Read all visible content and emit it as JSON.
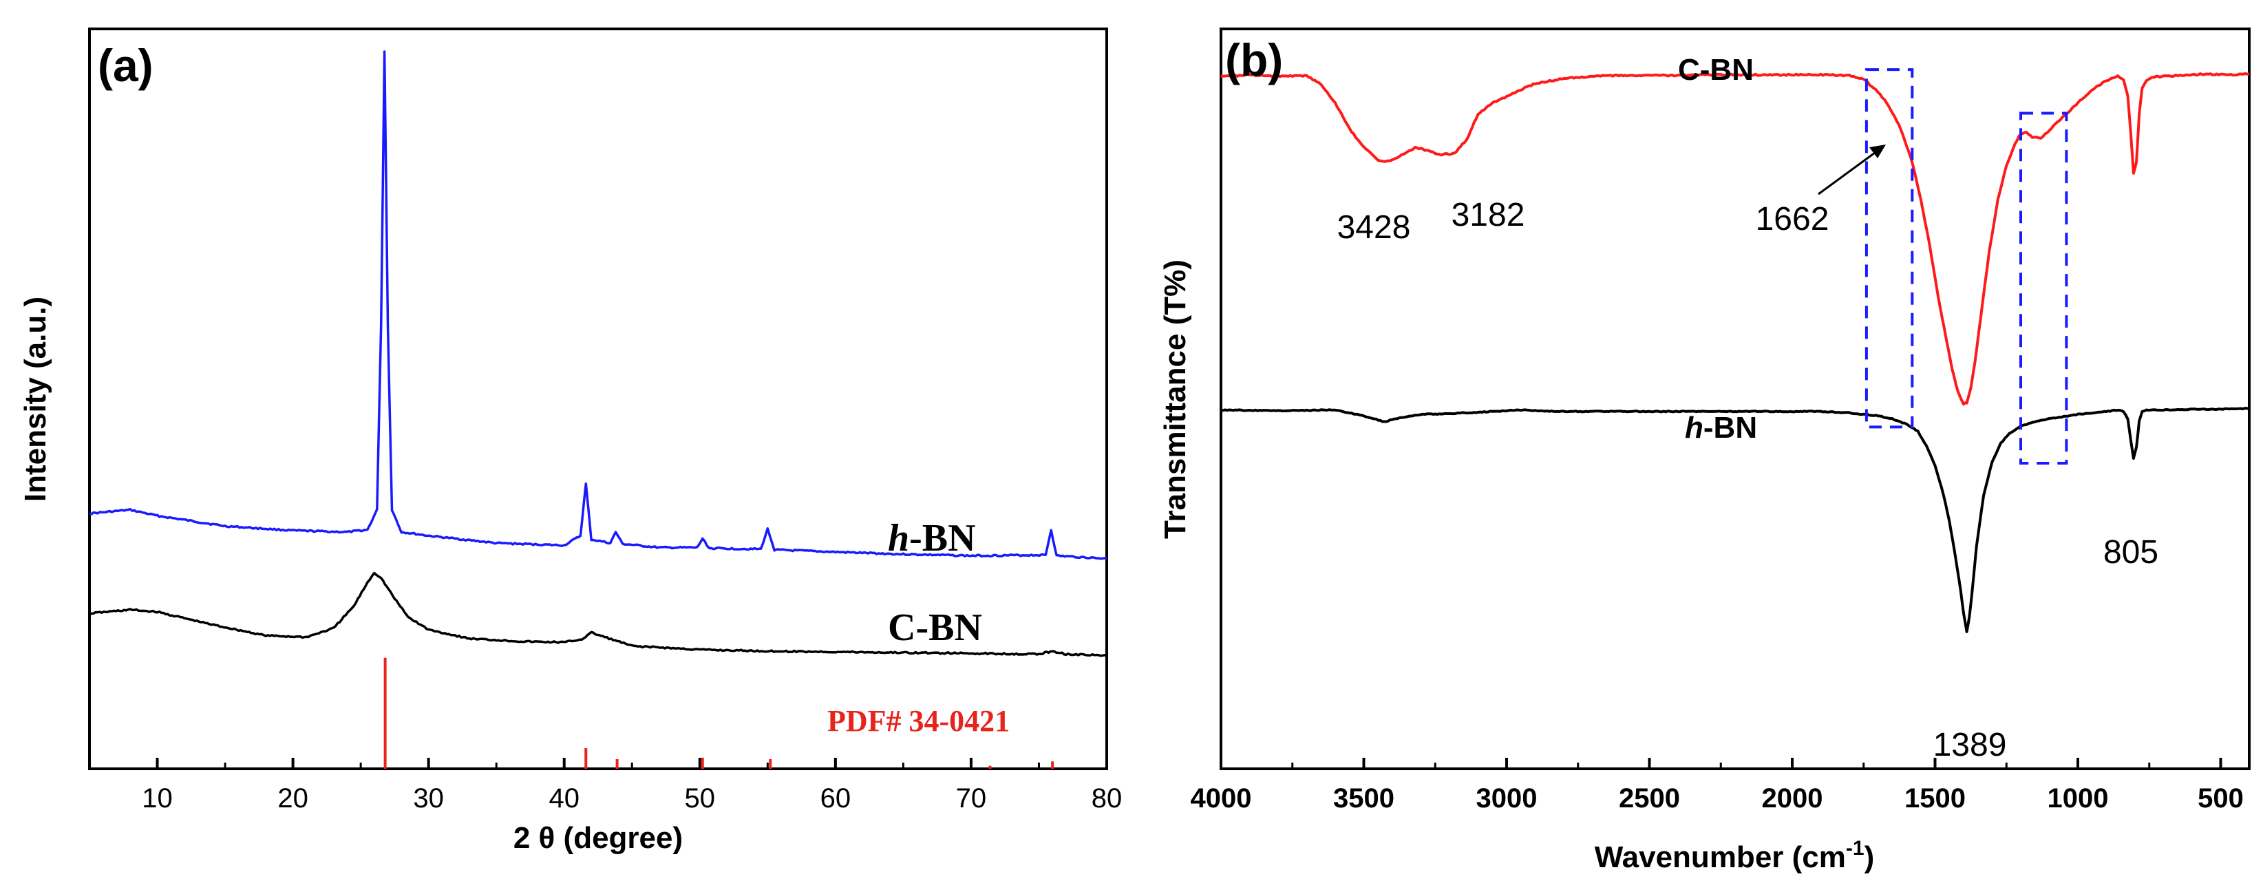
{
  "figure": {
    "panel_a_label": "(a)",
    "panel_b_label": "(b)"
  },
  "chart_data": [
    {
      "type": "line",
      "panel": "(a)",
      "title": "",
      "xlabel": "2 θ (degree)",
      "ylabel": "Intensity (a.u.)",
      "xlim": [
        5,
        80
      ],
      "ylim": [
        0,
        100
      ],
      "xticks": [
        10,
        20,
        30,
        40,
        50,
        60,
        70,
        80
      ],
      "y_tick_labels_shown": false,
      "series": [
        {
          "name": "h-BN",
          "label_prefix": "h",
          "label_suffix": "-BN",
          "color": "#1a1aff",
          "x": [
            5,
            8,
            10,
            15,
            20,
            24,
            25.5,
            26.2,
            26.5,
            26.75,
            27.0,
            27.3,
            28,
            30,
            35,
            40,
            41.2,
            41.6,
            42.0,
            43.4,
            43.8,
            44.3,
            47,
            49.8,
            50.2,
            50.7,
            54.5,
            55.0,
            55.5,
            60,
            65,
            70,
            75.5,
            75.9,
            76.3,
            80
          ],
          "y": [
            34.5,
            35.0,
            34.2,
            32.8,
            32.2,
            32.0,
            32.3,
            35.0,
            60.0,
            97.0,
            60.0,
            35.0,
            32.0,
            31.5,
            30.5,
            30.2,
            31.5,
            38.5,
            31.0,
            30.5,
            32.0,
            30.4,
            29.9,
            29.9,
            31.1,
            29.8,
            29.7,
            32.4,
            29.6,
            29.3,
            29.0,
            28.8,
            28.9,
            32.3,
            28.8,
            28.4
          ]
        },
        {
          "name": "C-BN",
          "label": "C-BN",
          "color": "#000000",
          "x": [
            5,
            8,
            10,
            14,
            18,
            21,
            23,
            24.5,
            25.5,
            26.0,
            26.5,
            27.5,
            28.5,
            30,
            33,
            37,
            40,
            41.3,
            42.0,
            43.0,
            45,
            50,
            55,
            60,
            65,
            70,
            75,
            76,
            77,
            80
          ],
          "y": [
            21.0,
            21.5,
            21.2,
            19.5,
            18.0,
            17.8,
            19.0,
            22.0,
            25.2,
            26.5,
            25.8,
            23.0,
            20.5,
            18.8,
            17.6,
            17.2,
            17.1,
            17.5,
            18.4,
            17.8,
            16.6,
            16.1,
            15.9,
            15.8,
            15.7,
            15.6,
            15.5,
            15.9,
            15.5,
            15.3
          ]
        }
      ],
      "reference_pattern": {
        "label": "PDF# 34-0421",
        "color": "#e8231c",
        "positions": [
          26.8,
          41.6,
          43.9,
          50.2,
          55.2,
          71.4,
          76.0
        ],
        "intensities": [
          15.0,
          2.8,
          1.3,
          1.5,
          1.3,
          0.4,
          1.0
        ]
      }
    },
    {
      "type": "line",
      "panel": "(b)",
      "title": "",
      "xlabel_main": "Wavenumber (cm",
      "xlabel_sup": "-1",
      "xlabel_close": ")",
      "ylabel": "Transmittance (T%)",
      "xlim": [
        4000,
        400
      ],
      "ylim": [
        0,
        100
      ],
      "xticks": [
        4000,
        3500,
        3000,
        2500,
        2000,
        1500,
        1000,
        500
      ],
      "y_tick_labels_shown": false,
      "series": [
        {
          "name": "C-BN",
          "label": "C-BN",
          "color": "#ff1a1a",
          "x": [
            4000,
            3900,
            3800,
            3700,
            3650,
            3600,
            3550,
            3500,
            3450,
            3428,
            3380,
            3320,
            3280,
            3230,
            3182,
            3140,
            3100,
            3050,
            3000,
            2950,
            2900,
            2800,
            2700,
            2600,
            2500,
            2400,
            2300,
            2200,
            2100,
            2000,
            1900,
            1800,
            1750,
            1700,
            1662,
            1620,
            1580,
            1550,
            1520,
            1490,
            1460,
            1440,
            1420,
            1400,
            1389,
            1375,
            1360,
            1340,
            1310,
            1280,
            1250,
            1220,
            1200,
            1180,
            1160,
            1130,
            1100,
            1070,
            1040,
            1000,
            950,
            900,
            860,
            840,
            825,
            815,
            805,
            795,
            785,
            775,
            760,
            740,
            700,
            650,
            600,
            550,
            500,
            450,
            400
          ],
          "y": [
            93.5,
            93.8,
            93.6,
            93.7,
            92.5,
            90.0,
            86.5,
            84.0,
            82.3,
            82.0,
            82.6,
            84.0,
            83.6,
            83.0,
            83.2,
            85.0,
            88.5,
            90.0,
            90.8,
            91.8,
            92.6,
            93.3,
            93.6,
            93.7,
            93.7,
            93.7,
            93.8,
            93.8,
            93.8,
            93.8,
            93.8,
            93.7,
            93.2,
            91.5,
            89.6,
            86.5,
            82.0,
            77.0,
            71.0,
            64.0,
            58.0,
            54.0,
            51.0,
            49.3,
            49.5,
            51.5,
            55.0,
            61.0,
            70.0,
            77.0,
            81.5,
            84.5,
            85.8,
            86.0,
            85.4,
            85.2,
            86.3,
            87.5,
            88.5,
            90.0,
            91.8,
            93.0,
            93.6,
            93.2,
            91.0,
            86.0,
            80.5,
            82.0,
            88.5,
            92.0,
            93.0,
            93.5,
            93.6,
            93.7,
            93.8,
            93.9,
            93.8,
            93.8,
            93.9
          ]
        },
        {
          "name": "h-BN",
          "label_prefix": "h",
          "label_suffix": "-BN",
          "color": "#000000",
          "x": [
            4000,
            3800,
            3600,
            3500,
            3428,
            3380,
            3300,
            3200,
            3000,
            2950,
            2900,
            2800,
            2600,
            2400,
            2200,
            2000,
            1900,
            1800,
            1700,
            1650,
            1600,
            1560,
            1530,
            1500,
            1470,
            1450,
            1430,
            1410,
            1400,
            1389,
            1380,
            1370,
            1355,
            1330,
            1300,
            1270,
            1240,
            1200,
            1150,
            1100,
            1050,
            1000,
            950,
            900,
            860,
            840,
            825,
            815,
            805,
            795,
            785,
            775,
            760,
            700,
            600,
            500,
            400
          ],
          "y": [
            48.5,
            48.4,
            48.5,
            47.7,
            46.9,
            47.4,
            47.9,
            48.0,
            48.4,
            48.5,
            48.4,
            48.3,
            48.3,
            48.3,
            48.3,
            48.3,
            48.3,
            48.1,
            47.7,
            47.3,
            46.6,
            45.6,
            43.6,
            41.0,
            37.0,
            33.5,
            29.0,
            24.0,
            21.0,
            18.5,
            20.5,
            24.0,
            30.0,
            37.0,
            41.5,
            44.0,
            45.3,
            46.3,
            46.9,
            47.3,
            47.6,
            47.9,
            48.1,
            48.3,
            48.5,
            48.3,
            47.3,
            44.5,
            42.0,
            43.5,
            47.0,
            48.3,
            48.5,
            48.5,
            48.6,
            48.6,
            48.7
          ]
        }
      ],
      "annotations": [
        {
          "text": "3428",
          "x": 3428
        },
        {
          "text": "3182",
          "x": 3182
        },
        {
          "text": "1662",
          "x": 1662
        },
        {
          "text": "1389",
          "x": 1389
        },
        {
          "text": "805",
          "x": 805
        }
      ],
      "highlight_regions": [
        {
          "x_from": 1740,
          "x_to": 1580,
          "color": "#1a1aff"
        },
        {
          "x_from": 1200,
          "x_to": 1040,
          "color": "#1a1aff"
        }
      ]
    }
  ]
}
